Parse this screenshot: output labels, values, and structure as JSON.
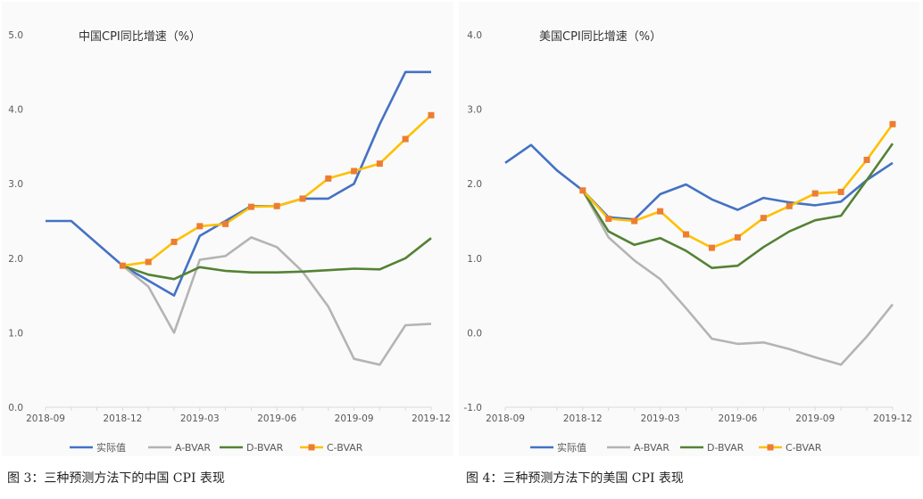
{
  "colors": {
    "actual": "#4472c4",
    "abvar": "#b4b4b4",
    "dbvar": "#548235",
    "cbvar": "#ffc000",
    "cbvar_marker": "#ed7d31",
    "axis": "#d9d9d9",
    "text": "#595959"
  },
  "legend_labels": [
    "实际值",
    "A-BVAR",
    "D-BVAR",
    "C-BVAR"
  ],
  "captions": {
    "left": "图 3：三种预测方法下的中国 CPI 表现",
    "right": "图 4：三种预测方法下的美国 CPI 表现"
  },
  "chart_data": [
    {
      "type": "line",
      "title": "中国CPI同比增速（%）",
      "x": [
        "2018-09",
        "2018-10",
        "2018-11",
        "2018-12",
        "2019-01",
        "2019-02",
        "2019-03",
        "2019-04",
        "2019-05",
        "2019-06",
        "2019-07",
        "2019-08",
        "2019-09",
        "2019-10",
        "2019-11",
        "2019-12"
      ],
      "xtick_labels": [
        "2018-09",
        "2018-12",
        "2019-03",
        "2019-06",
        "2019-09",
        "2019-12"
      ],
      "ylim": [
        0,
        5
      ],
      "ytick_labels": [
        "0.0",
        "1.0",
        "2.0",
        "3.0",
        "4.0",
        "5.0"
      ],
      "legend_position": "bottom",
      "series": [
        {
          "name": "实际值",
          "values": [
            2.5,
            2.5,
            2.2,
            1.9,
            1.7,
            1.5,
            2.3,
            2.5,
            2.7,
            2.7,
            2.8,
            2.8,
            3.0,
            3.8,
            4.5,
            4.5
          ]
        },
        {
          "name": "A-BVAR",
          "values": [
            null,
            null,
            null,
            1.9,
            1.62,
            1.0,
            1.98,
            2.03,
            2.28,
            2.15,
            1.82,
            1.35,
            0.65,
            0.57,
            1.1,
            1.12
          ]
        },
        {
          "name": "D-BVAR",
          "values": [
            null,
            null,
            null,
            1.9,
            1.78,
            1.72,
            1.88,
            1.83,
            1.81,
            1.81,
            1.82,
            1.84,
            1.86,
            1.85,
            2.0,
            2.27
          ]
        },
        {
          "name": "C-BVAR",
          "values": [
            null,
            null,
            null,
            1.9,
            1.95,
            2.22,
            2.43,
            2.46,
            2.69,
            2.7,
            2.8,
            3.07,
            3.17,
            3.27,
            3.6,
            3.92
          ]
        }
      ]
    },
    {
      "type": "line",
      "title": "美国CPI同比增速（%）",
      "x": [
        "2018-09",
        "2018-10",
        "2018-11",
        "2018-12",
        "2019-01",
        "2019-02",
        "2019-03",
        "2019-04",
        "2019-05",
        "2019-06",
        "2019-07",
        "2019-08",
        "2019-09",
        "2019-10",
        "2019-11",
        "2019-12"
      ],
      "xtick_labels": [
        "2018-09",
        "2018-12",
        "2019-03",
        "2019-06",
        "2019-09",
        "2019-12"
      ],
      "ylim": [
        -1,
        4
      ],
      "ytick_labels": [
        "-1.0",
        "0.0",
        "1.0",
        "2.0",
        "3.0",
        "4.0"
      ],
      "legend_position": "bottom",
      "series": [
        {
          "name": "实际值",
          "values": [
            2.28,
            2.52,
            2.18,
            1.91,
            1.55,
            1.52,
            1.86,
            1.99,
            1.79,
            1.65,
            1.81,
            1.75,
            1.71,
            1.76,
            2.05,
            2.28
          ]
        },
        {
          "name": "A-BVAR",
          "values": [
            null,
            null,
            null,
            1.91,
            1.28,
            0.97,
            0.72,
            0.33,
            -0.08,
            -0.15,
            -0.13,
            -0.22,
            -0.33,
            -0.43,
            -0.05,
            0.38
          ]
        },
        {
          "name": "D-BVAR",
          "values": [
            null,
            null,
            null,
            1.91,
            1.36,
            1.18,
            1.27,
            1.1,
            0.87,
            0.9,
            1.15,
            1.36,
            1.51,
            1.57,
            2.05,
            2.54
          ]
        },
        {
          "name": "C-BVAR",
          "values": [
            null,
            null,
            null,
            1.91,
            1.53,
            1.5,
            1.63,
            1.32,
            1.14,
            1.28,
            1.54,
            1.7,
            1.87,
            1.89,
            2.32,
            2.8
          ]
        }
      ]
    }
  ]
}
